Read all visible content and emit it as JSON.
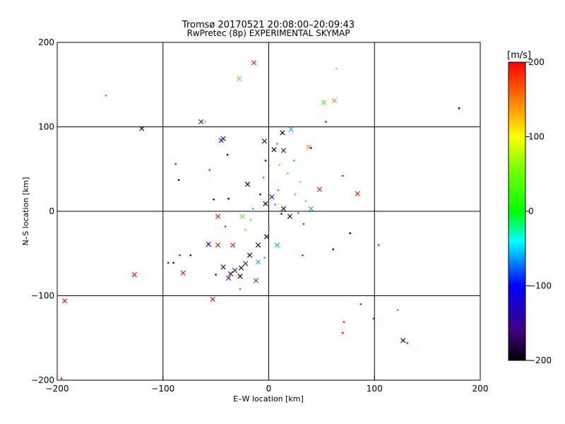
{
  "chart_data": {
    "type": "scatter",
    "title": "Tromsø 20170521 20:08:00–20:09:43",
    "subtitle": "RwPretec (8p) EXPERIMENTAL SKYMAP",
    "xlabel": "E–W location [km]",
    "ylabel": "N–S location [km]",
    "xlim": [
      -200,
      200
    ],
    "ylim": [
      -200,
      200
    ],
    "xticks": [
      "−200",
      "−100",
      "0",
      "100",
      "200"
    ],
    "yticks": [
      "−200",
      "−100",
      "0",
      "100",
      "200"
    ],
    "grid": true,
    "colorbar": {
      "label": "[m/s]",
      "range": [
        -200,
        200
      ],
      "ticks": [
        "−200",
        "−100",
        "0",
        "100",
        "200"
      ]
    },
    "cross_points": [
      {
        "x": -14,
        "y": 176,
        "v": 200
      },
      {
        "x": -28,
        "y": 157,
        "v": 30
      },
      {
        "x": 52,
        "y": 129,
        "v": 20
      },
      {
        "x": 62,
        "y": 131,
        "v": 150
      },
      {
        "x": -64,
        "y": 106,
        "v": -160
      },
      {
        "x": -120,
        "y": 98,
        "v": -200
      },
      {
        "x": 13,
        "y": 93,
        "v": -200
      },
      {
        "x": 21,
        "y": 97,
        "v": -60
      },
      {
        "x": -43,
        "y": 86,
        "v": -120
      },
      {
        "x": -45,
        "y": 84,
        "v": -160
      },
      {
        "x": -4,
        "y": 83,
        "v": -180
      },
      {
        "x": 38,
        "y": 76,
        "v": 150
      },
      {
        "x": 5,
        "y": 73,
        "v": -200
      },
      {
        "x": 14,
        "y": 72,
        "v": -160
      },
      {
        "x": -20,
        "y": 32,
        "v": -200
      },
      {
        "x": 48,
        "y": 26,
        "v": 200
      },
      {
        "x": 84,
        "y": 21,
        "v": 200
      },
      {
        "x": 3,
        "y": 17,
        "v": -120
      },
      {
        "x": -3,
        "y": 9,
        "v": -200
      },
      {
        "x": 14,
        "y": 3,
        "v": -200
      },
      {
        "x": 40,
        "y": 3,
        "v": -60
      },
      {
        "x": -48,
        "y": -6,
        "v": 200
      },
      {
        "x": -25,
        "y": -6,
        "v": 30
      },
      {
        "x": 20,
        "y": -6,
        "v": -200
      },
      {
        "x": -2,
        "y": -30,
        "v": -200
      },
      {
        "x": -57,
        "y": -39,
        "v": -120
      },
      {
        "x": -48,
        "y": -40,
        "v": 200
      },
      {
        "x": -34,
        "y": -40,
        "v": 200
      },
      {
        "x": -10,
        "y": -40,
        "v": -200
      },
      {
        "x": 8,
        "y": -40,
        "v": -60
      },
      {
        "x": -18,
        "y": -52,
        "v": -200
      },
      {
        "x": -22,
        "y": -62,
        "v": -160
      },
      {
        "x": -43,
        "y": -66,
        "v": -120
      },
      {
        "x": -26,
        "y": -67,
        "v": -200
      },
      {
        "x": -32,
        "y": -70,
        "v": -160
      },
      {
        "x": -36,
        "y": -74,
        "v": -200
      },
      {
        "x": -27,
        "y": -77,
        "v": -200
      },
      {
        "x": -38,
        "y": -79,
        "v": -160
      },
      {
        "x": -127,
        "y": -75,
        "v": 200
      },
      {
        "x": -81,
        "y": -73,
        "v": 200
      },
      {
        "x": -12,
        "y": -82,
        "v": -80
      },
      {
        "x": -53,
        "y": -104,
        "v": 200
      },
      {
        "x": -193,
        "y": -106,
        "v": 200
      },
      {
        "x": -10,
        "y": -60,
        "v": -60
      },
      {
        "x": 127,
        "y": -153,
        "v": -200
      }
    ],
    "dot_points": [
      {
        "x": -154,
        "y": 137,
        "v": -60
      },
      {
        "x": 64,
        "y": 169,
        "v": 50
      },
      {
        "x": 54,
        "y": 106,
        "v": 200
      },
      {
        "x": -60,
        "y": 106,
        "v": 40
      },
      {
        "x": 180,
        "y": 122,
        "v": -200
      },
      {
        "x": -88,
        "y": 56,
        "v": 200
      },
      {
        "x": -56,
        "y": 49,
        "v": 200
      },
      {
        "x": 70,
        "y": 42,
        "v": 200
      },
      {
        "x": -85,
        "y": 37,
        "v": -200
      },
      {
        "x": -39,
        "y": 67,
        "v": -200
      },
      {
        "x": 40,
        "y": 75,
        "v": -200
      },
      {
        "x": 8,
        "y": 80,
        "v": -60
      },
      {
        "x": 24,
        "y": 60,
        "v": -60
      },
      {
        "x": 10,
        "y": 55,
        "v": 40
      },
      {
        "x": -3,
        "y": 60,
        "v": -140
      },
      {
        "x": 18,
        "y": 45,
        "v": 30
      },
      {
        "x": -5,
        "y": 40,
        "v": -60
      },
      {
        "x": 30,
        "y": 35,
        "v": 40
      },
      {
        "x": 25,
        "y": 20,
        "v": 30
      },
      {
        "x": 9,
        "y": 25,
        "v": -60
      },
      {
        "x": -8,
        "y": 20,
        "v": -200
      },
      {
        "x": 35,
        "y": 12,
        "v": 30
      },
      {
        "x": -38,
        "y": 15,
        "v": -200
      },
      {
        "x": -52,
        "y": 14,
        "v": -200
      },
      {
        "x": -15,
        "y": 3,
        "v": -60
      },
      {
        "x": 6,
        "y": 8,
        "v": -60
      },
      {
        "x": 12,
        "y": -3,
        "v": -100
      },
      {
        "x": 28,
        "y": -2,
        "v": -60
      },
      {
        "x": -17,
        "y": -10,
        "v": 30
      },
      {
        "x": 33,
        "y": -15,
        "v": 200
      },
      {
        "x": -41,
        "y": -18,
        "v": 200
      },
      {
        "x": -22,
        "y": -22,
        "v": 40
      },
      {
        "x": 0,
        "y": -20,
        "v": -60
      },
      {
        "x": 77,
        "y": -26,
        "v": -200
      },
      {
        "x": 104,
        "y": -40,
        "v": 200
      },
      {
        "x": 61,
        "y": -45,
        "v": -200
      },
      {
        "x": 32,
        "y": -52,
        "v": 200
      },
      {
        "x": -74,
        "y": -52,
        "v": -200
      },
      {
        "x": -84,
        "y": -52,
        "v": 200
      },
      {
        "x": -4,
        "y": -55,
        "v": -60
      },
      {
        "x": -95,
        "y": -61,
        "v": -160
      },
      {
        "x": -90,
        "y": -61,
        "v": -200
      },
      {
        "x": -50,
        "y": -75,
        "v": -200
      },
      {
        "x": -27,
        "y": -92,
        "v": -60
      },
      {
        "x": 122,
        "y": -117,
        "v": -60
      },
      {
        "x": 87,
        "y": -110,
        "v": 200
      },
      {
        "x": 71,
        "y": -131,
        "v": 200
      },
      {
        "x": 70,
        "y": -144,
        "v": 200
      },
      {
        "x": 99,
        "y": -127,
        "v": 200
      },
      {
        "x": 131,
        "y": -156,
        "v": 200
      },
      {
        "x": -196,
        "y": -198,
        "v": 200
      }
    ]
  }
}
